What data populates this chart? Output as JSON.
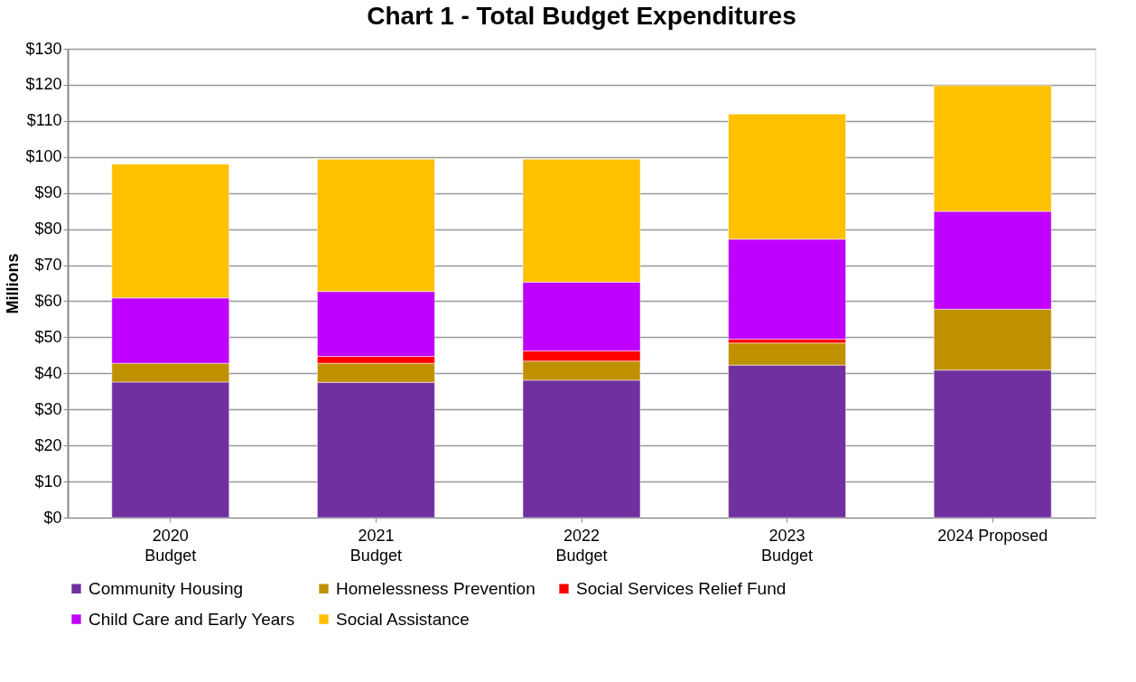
{
  "chart_data": {
    "type": "bar",
    "stacked": true,
    "title": "Chart 1 - Total Budget Expenditures",
    "ylabel": "Millions",
    "categories": [
      "2020\nBudget",
      "2021\nBudget",
      "2022\nBudget",
      "2023\nBudget",
      "2024 Proposed"
    ],
    "series": [
      {
        "name": "Community Housing",
        "color": "#7030a0",
        "values": [
          37.6,
          37.5,
          38.1,
          42.3,
          40.9
        ]
      },
      {
        "name": "Homelessness Prevention",
        "color": "#bf9000",
        "values": [
          5.2,
          5.3,
          5.3,
          6.1,
          16.9
        ]
      },
      {
        "name": "Social Services Relief Fund",
        "color": "#ff0000",
        "values": [
          null,
          1.9,
          2.8,
          1.1,
          null
        ]
      },
      {
        "name": "Child Care and Early Years",
        "color": "#bf00ff",
        "values": [
          18.1,
          18.0,
          19.1,
          27.7,
          27.1
        ]
      },
      {
        "name": "Social Assistance",
        "color": "#ffc000",
        "values": [
          37.1,
          36.7,
          34.1,
          34.7,
          34.9
        ]
      }
    ],
    "ylim": [
      0,
      130
    ],
    "yticks": [
      {
        "value": 0,
        "label": "$0"
      },
      {
        "value": 10,
        "label": "$10"
      },
      {
        "value": 20,
        "label": "$20"
      },
      {
        "value": 30,
        "label": "$30"
      },
      {
        "value": 40,
        "label": "$40"
      },
      {
        "value": 50,
        "label": "$50"
      },
      {
        "value": 60,
        "label": "$60"
      },
      {
        "value": 70,
        "label": "$70"
      },
      {
        "value": 80,
        "label": "$80"
      },
      {
        "value": 90,
        "label": "$90"
      },
      {
        "value": 100,
        "label": "$100"
      },
      {
        "value": 110,
        "label": "$110"
      },
      {
        "value": 120,
        "label": "$120"
      },
      {
        "value": 130,
        "label": "$130"
      }
    ],
    "grid": "y",
    "legend": "bottom"
  }
}
